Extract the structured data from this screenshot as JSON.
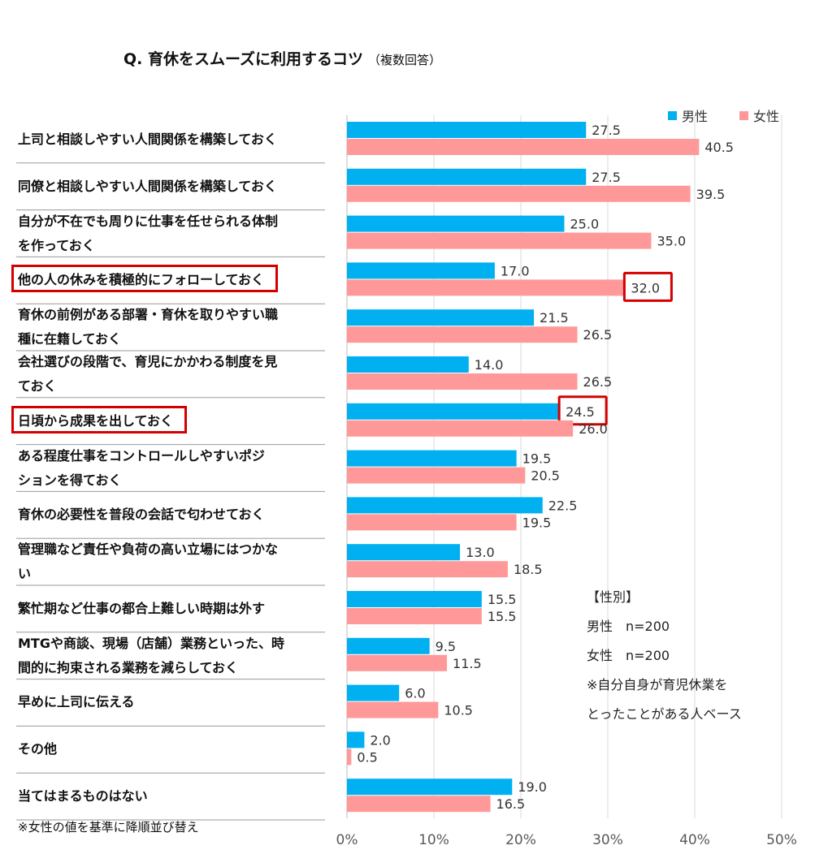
{
  "title": "Q. 育休をスムーズに利用するコツ",
  "subtitle": "（複数回答）",
  "footnote": "※女性の値を基準に降順並び替え",
  "legend": [
    {
      "name": "男性",
      "color": "#00b0f0"
    },
    {
      "name": "女性",
      "color": "#ff9999"
    }
  ],
  "info": {
    "heading": "【性別】",
    "male_n": "男性　n=200",
    "female_n": "女性　n=200",
    "note1": "※自分自身が育児休業を",
    "note2": "とったことがある人ベース"
  },
  "chart_data": {
    "type": "bar",
    "orientation": "horizontal",
    "categories": [
      "上司と相談しやすい人間関係を構築しておく",
      "同僚と相談しやすい人間関係を構築しておく",
      "自分が不在でも周りに仕事を任せられる体制を作っておく",
      "他の人の休みを積極的にフォローしておく",
      "育休の前例がある部署・育休を取りやすい職種に在籍しておく",
      "会社選びの段階で、育児にかかわる制度を見ておく",
      "日頃から成果を出しておく",
      "ある程度仕事をコントロールしやすいポジションを得ておく",
      "育休の必要性を普段の会話で匂わせておく",
      "管理職など責任や負荷の高い立場にはつかない",
      "繁忙期など仕事の都合上難しい時期は外す",
      "MTGや商談、現場（店舗）業務といった、時間的に拘束される業務を減らしておく",
      "早めに上司に伝える",
      "その他",
      "当てはまるものはない"
    ],
    "category_lines": [
      [
        "上司と相談しやすい人間関係を構築しておく"
      ],
      [
        "同僚と相談しやすい人間関係を構築しておく"
      ],
      [
        "自分が不在でも周りに仕事を任せられる体制",
        "を作っておく"
      ],
      [
        "他の人の休みを積極的にフォローしておく"
      ],
      [
        "育休の前例がある部署・育休を取りやすい職",
        "種に在籍しておく"
      ],
      [
        "会社選びの段階で、育児にかかわる制度を見",
        "ておく"
      ],
      [
        "日頃から成果を出しておく"
      ],
      [
        "ある程度仕事をコントロールしやすいポジ",
        "ションを得ておく"
      ],
      [
        "育休の必要性を普段の会話で匂わせておく"
      ],
      [
        "管理職など責任や負荷の高い立場にはつかな",
        "い"
      ],
      [
        "繁忙期など仕事の都合上難しい時期は外す"
      ],
      [
        "MTGや商談、現場（店舗）業務といった、時",
        "間的に拘束される業務を減らしておく"
      ],
      [
        "早めに上司に伝える"
      ],
      [
        "その他"
      ],
      [
        "当てはまるものはない"
      ]
    ],
    "series": [
      {
        "name": "男性",
        "color": "#00b0f0",
        "values": [
          27.5,
          27.5,
          25.0,
          17.0,
          21.5,
          14.0,
          24.5,
          19.5,
          22.5,
          13.0,
          15.5,
          9.5,
          6.0,
          2.0,
          19.0
        ],
        "labels": [
          "27.5",
          "27.5",
          "25.0",
          "17.0",
          "21.5",
          "14.0",
          "24.5",
          "19.5",
          "22.5",
          "13.0",
          "15.5",
          "9.5",
          "6.0",
          "2.0",
          "19.0"
        ]
      },
      {
        "name": "女性",
        "color": "#ff9999",
        "values": [
          40.5,
          39.5,
          35.0,
          32.0,
          26.5,
          26.5,
          26.0,
          20.5,
          19.5,
          18.5,
          15.5,
          11.5,
          10.5,
          0.5,
          16.5
        ],
        "labels": [
          "40.5",
          "39.5",
          "35.0",
          "32.0",
          "26.5",
          "26.5",
          "26.0",
          "20.5",
          "19.5",
          "18.5",
          "15.5",
          "11.5",
          "10.5",
          "0.5",
          "16.5"
        ]
      }
    ],
    "xlim": [
      0,
      50
    ],
    "xticks": [
      0,
      10,
      20,
      30,
      40,
      50
    ],
    "xtick_labels": [
      "0%",
      "10%",
      "20%",
      "30%",
      "40%",
      "50%"
    ],
    "grid": true,
    "legend_position": "top-right",
    "highlights": [
      {
        "category_index": 3,
        "series_index": 1
      },
      {
        "category_index": 6,
        "series_index": 0
      }
    ],
    "highlight_labels": [
      3,
      6
    ]
  }
}
